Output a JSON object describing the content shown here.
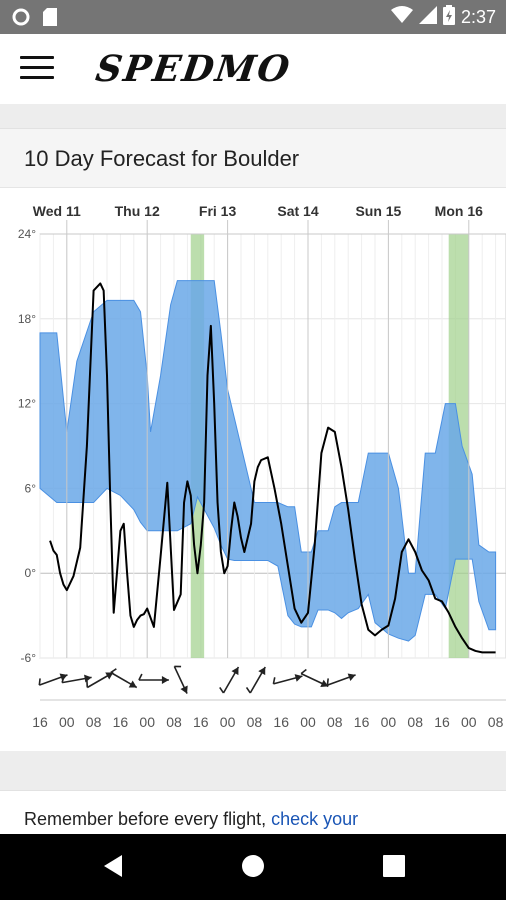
{
  "status_bar": {
    "time": "2:37"
  },
  "app": {
    "logo": "SPEDMO"
  },
  "forecast": {
    "title": "10 Day Forecast for Boulder"
  },
  "footer_note": {
    "text": "Remember before every flight, ",
    "link": "check your"
  },
  "colors": {
    "band": "#6aa8e8",
    "band_edge": "#4a90e2",
    "highlight": "#9fd08a",
    "line": "#000000",
    "grid": "#e6e6e6"
  },
  "chart_data": {
    "type": "line",
    "x_unit": "hours from Wed 11 16:00",
    "day_labels": [
      {
        "label": "Wed 11",
        "x": 8
      },
      {
        "label": "Thu 12",
        "x": 32
      },
      {
        "label": "Fri 13",
        "x": 56
      },
      {
        "label": "Sat 14",
        "x": 80
      },
      {
        "label": "Sun 15",
        "x": 104
      },
      {
        "label": "Mon 16",
        "x": 128
      }
    ],
    "x_tick_labels": [
      "16",
      "00",
      "08",
      "16",
      "00",
      "08",
      "16",
      "00",
      "08",
      "16",
      "00",
      "08",
      "16",
      "00",
      "08",
      "16",
      "00",
      "08"
    ],
    "xlim": [
      0,
      136
    ],
    "ylim": [
      -6,
      24
    ],
    "y_ticks": [
      "24°",
      "18°",
      "12°",
      "6°",
      "0°",
      "-6°"
    ],
    "highlight_ranges": [
      [
        45,
        49
      ],
      [
        122,
        128
      ]
    ],
    "band": {
      "x": [
        0,
        5,
        8,
        11,
        16,
        20,
        24,
        28,
        30,
        32,
        33,
        36,
        39,
        41,
        45,
        47,
        52,
        54,
        56,
        58,
        60,
        62,
        64,
        68,
        71,
        74,
        76,
        78,
        81,
        83,
        86,
        88,
        90,
        92,
        95,
        98,
        100,
        104,
        107,
        110,
        112,
        115,
        118,
        121,
        124,
        126,
        129,
        131,
        134,
        136
      ],
      "high": [
        17,
        17,
        10,
        15,
        18.5,
        19.3,
        19.3,
        19.3,
        18.5,
        14,
        10,
        14,
        19,
        20.7,
        20.7,
        20.7,
        20.7,
        17,
        13,
        11,
        9,
        7,
        5,
        5,
        5,
        4.7,
        4.7,
        1.5,
        1.5,
        3,
        3,
        4.7,
        5,
        5,
        5,
        8.5,
        8.5,
        8.5,
        6,
        0,
        0,
        8.5,
        8.5,
        12,
        12,
        9,
        7,
        2,
        1.5,
        1.5
      ],
      "low": [
        6,
        5,
        5,
        5,
        5,
        6,
        5.5,
        4.5,
        3.6,
        3,
        3,
        3,
        3,
        3,
        3.5,
        5.4,
        3.2,
        2,
        1,
        0.9,
        0.9,
        0.9,
        0.9,
        0.9,
        0.5,
        -3,
        -3.6,
        -3.8,
        -3.8,
        -2.6,
        -2.6,
        -2.8,
        -3.2,
        -2.8,
        -2.5,
        -1.5,
        -3.5,
        -4.3,
        -4.6,
        -4.8,
        -4.4,
        -1.5,
        -1.5,
        -2.5,
        1,
        1,
        1,
        -2,
        -4,
        -4
      ]
    },
    "series": [
      {
        "x": [
          3,
          4,
          5,
          6,
          7,
          8,
          10,
          12,
          14,
          16,
          18,
          19,
          20,
          21,
          22,
          24,
          25,
          26,
          27,
          28,
          29,
          30,
          31,
          32,
          34,
          36,
          38,
          40,
          42,
          43,
          44,
          45,
          46,
          47,
          48,
          49,
          50,
          51,
          52,
          53,
          54,
          55,
          56,
          57,
          58,
          59,
          60,
          61,
          62,
          63,
          64,
          65,
          66,
          68,
          70,
          72,
          74,
          76,
          78,
          80,
          82,
          84,
          86,
          88,
          90,
          92,
          94,
          96,
          98,
          100,
          102,
          104,
          106,
          108,
          110,
          112,
          114,
          116,
          118,
          120,
          122,
          124,
          126,
          128,
          130,
          132,
          134,
          136
        ],
        "y": [
          2.3,
          1.6,
          1.3,
          0,
          -0.8,
          -1.2,
          -0.2,
          1.8,
          9,
          20,
          20.5,
          20,
          14,
          5,
          -2.8,
          3,
          3.5,
          0,
          -3,
          -3.8,
          -3.3,
          -3,
          -2.9,
          -2.5,
          -3.8,
          1.2,
          6.4,
          -2.6,
          -1.5,
          5,
          6.5,
          5.5,
          2,
          0,
          2,
          5,
          14,
          17.5,
          12,
          5,
          1.5,
          0,
          0.5,
          3,
          5,
          4,
          2.5,
          1.5,
          2.5,
          3.5,
          6.5,
          7.5,
          8,
          8.2,
          6,
          3.5,
          0.5,
          -2.5,
          -3.5,
          -2.8,
          2,
          8.5,
          10.3,
          10,
          7.5,
          4.5,
          1,
          -2.2,
          -4,
          -4.4,
          -4,
          -3.7,
          -1.8,
          1.5,
          2.4,
          1.5,
          0.2,
          -0.5,
          -1.8,
          -2,
          -2.8,
          -3.8,
          -4.6,
          -5.3,
          -5.5,
          -5.6,
          -5.6,
          -5.6
        ]
      }
    ],
    "wind_arrows": [
      {
        "x": 4,
        "angle": -20
      },
      {
        "x": 11,
        "angle": -10
      },
      {
        "x": 18,
        "angle": -30
      },
      {
        "x": 25,
        "angle": 30
      },
      {
        "x": 34,
        "angle": 0
      },
      {
        "x": 42,
        "angle": 65
      },
      {
        "x": 57,
        "angle": -60
      },
      {
        "x": 65,
        "angle": -60
      },
      {
        "x": 74,
        "angle": -15
      },
      {
        "x": 82,
        "angle": 25
      },
      {
        "x": 90,
        "angle": -20
      }
    ]
  }
}
